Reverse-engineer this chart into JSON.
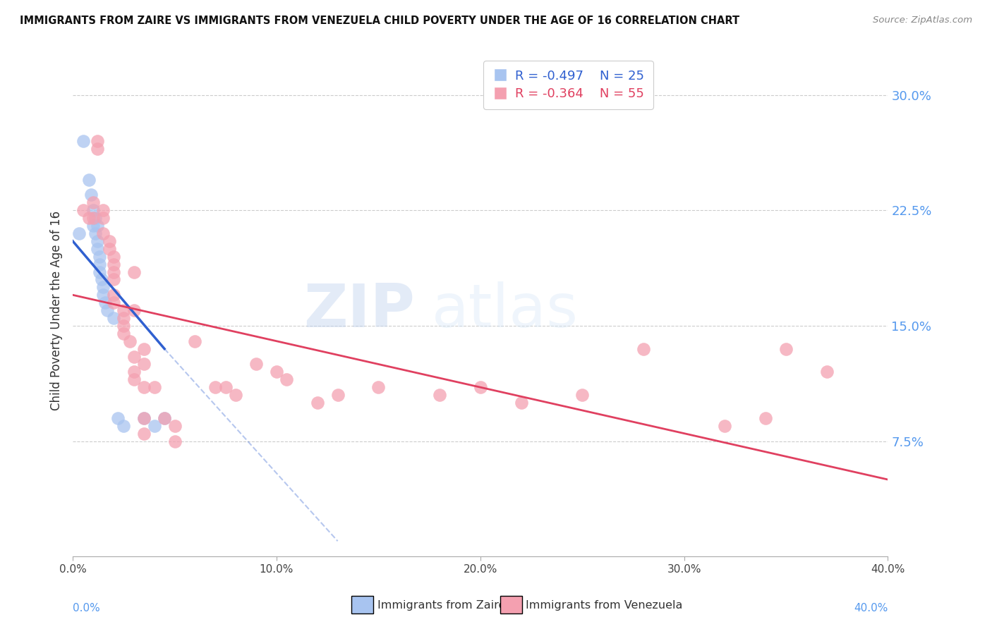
{
  "title": "IMMIGRANTS FROM ZAIRE VS IMMIGRANTS FROM VENEZUELA CHILD POVERTY UNDER THE AGE OF 16 CORRELATION CHART",
  "source": "Source: ZipAtlas.com",
  "ylabel": "Child Poverty Under the Age of 16",
  "yticks": [
    "30.0%",
    "22.5%",
    "15.0%",
    "7.5%"
  ],
  "ytick_vals": [
    30.0,
    22.5,
    15.0,
    7.5
  ],
  "legend_zaire_R": "-0.497",
  "legend_zaire_N": "25",
  "legend_venezuela_R": "-0.364",
  "legend_venezuela_N": "55",
  "zaire_color": "#a8c4f0",
  "venezuela_color": "#f4a0b0",
  "line_zaire_color": "#3060d0",
  "line_venezuela_color": "#e04060",
  "watermark_zip": "ZIP",
  "watermark_atlas": "atlas",
  "zaire_points": [
    [
      0.3,
      21.0
    ],
    [
      0.5,
      27.0
    ],
    [
      0.8,
      24.5
    ],
    [
      0.9,
      23.5
    ],
    [
      1.0,
      22.5
    ],
    [
      1.0,
      21.5
    ],
    [
      1.1,
      22.0
    ],
    [
      1.1,
      21.0
    ],
    [
      1.2,
      21.5
    ],
    [
      1.2,
      20.5
    ],
    [
      1.2,
      20.0
    ],
    [
      1.3,
      19.5
    ],
    [
      1.3,
      19.0
    ],
    [
      1.3,
      18.5
    ],
    [
      1.4,
      18.0
    ],
    [
      1.5,
      17.5
    ],
    [
      1.5,
      17.0
    ],
    [
      1.6,
      16.5
    ],
    [
      1.7,
      16.0
    ],
    [
      2.0,
      15.5
    ],
    [
      2.2,
      9.0
    ],
    [
      2.5,
      8.5
    ],
    [
      3.5,
      9.0
    ],
    [
      4.0,
      8.5
    ],
    [
      4.5,
      9.0
    ]
  ],
  "venezuela_points": [
    [
      0.5,
      22.5
    ],
    [
      0.8,
      22.0
    ],
    [
      1.0,
      23.0
    ],
    [
      1.0,
      22.0
    ],
    [
      1.2,
      27.0
    ],
    [
      1.2,
      26.5
    ],
    [
      1.5,
      22.5
    ],
    [
      1.5,
      22.0
    ],
    [
      1.5,
      21.0
    ],
    [
      1.8,
      20.5
    ],
    [
      1.8,
      20.0
    ],
    [
      2.0,
      19.5
    ],
    [
      2.0,
      19.0
    ],
    [
      2.0,
      18.5
    ],
    [
      2.0,
      18.0
    ],
    [
      2.0,
      17.0
    ],
    [
      2.0,
      16.5
    ],
    [
      2.5,
      16.0
    ],
    [
      2.5,
      15.5
    ],
    [
      2.5,
      15.0
    ],
    [
      2.5,
      14.5
    ],
    [
      2.8,
      14.0
    ],
    [
      3.0,
      18.5
    ],
    [
      3.0,
      16.0
    ],
    [
      3.0,
      13.0
    ],
    [
      3.0,
      12.0
    ],
    [
      3.0,
      11.5
    ],
    [
      3.5,
      13.5
    ],
    [
      3.5,
      12.5
    ],
    [
      3.5,
      11.0
    ],
    [
      3.5,
      9.0
    ],
    [
      3.5,
      8.0
    ],
    [
      4.0,
      11.0
    ],
    [
      4.5,
      9.0
    ],
    [
      5.0,
      8.5
    ],
    [
      5.0,
      7.5
    ],
    [
      6.0,
      14.0
    ],
    [
      7.0,
      11.0
    ],
    [
      7.5,
      11.0
    ],
    [
      8.0,
      10.5
    ],
    [
      9.0,
      12.5
    ],
    [
      10.0,
      12.0
    ],
    [
      10.5,
      11.5
    ],
    [
      12.0,
      10.0
    ],
    [
      13.0,
      10.5
    ],
    [
      15.0,
      11.0
    ],
    [
      18.0,
      10.5
    ],
    [
      20.0,
      11.0
    ],
    [
      22.0,
      10.0
    ],
    [
      25.0,
      10.5
    ],
    [
      28.0,
      13.5
    ],
    [
      32.0,
      8.5
    ],
    [
      34.0,
      9.0
    ],
    [
      35.0,
      13.5
    ],
    [
      37.0,
      12.0
    ]
  ],
  "xlim": [
    0.0,
    40.0
  ],
  "ylim": [
    0.0,
    32.0
  ],
  "background_color": "#ffffff"
}
